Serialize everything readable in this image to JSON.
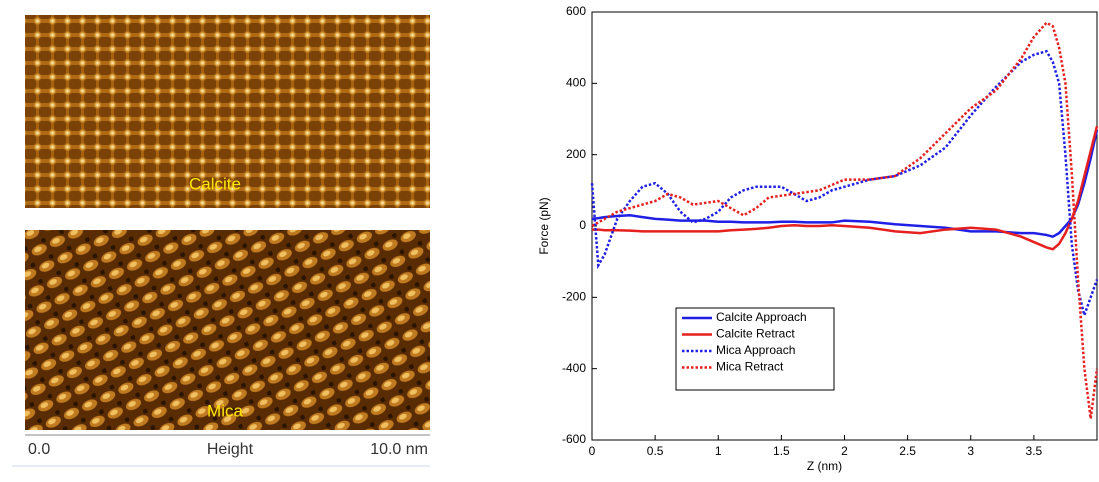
{
  "images": [
    {
      "label": "Calcite"
    },
    {
      "label": "Mica"
    }
  ],
  "scale_bar": {
    "min_label": "0.0",
    "title": "Height",
    "max_label": "10.0 nm"
  },
  "chart_data": {
    "type": "line",
    "xlabel": "Z (nm)",
    "ylabel": "Force (pN)",
    "x": [
      0,
      0.05,
      0.1,
      0.2,
      0.3,
      0.4,
      0.5,
      0.6,
      0.7,
      0.8,
      0.9,
      1.0,
      1.1,
      1.2,
      1.3,
      1.4,
      1.5,
      1.6,
      1.7,
      1.8,
      1.9,
      2.0,
      2.2,
      2.4,
      2.6,
      2.8,
      3.0,
      3.2,
      3.4,
      3.5,
      3.6,
      3.65,
      3.7,
      3.75,
      3.8,
      3.85,
      3.9,
      3.95,
      4.0
    ],
    "series": [
      {
        "name": "Calcite Approach",
        "color": "#1f1fe6",
        "style": "solid",
        "values": [
          20,
          22,
          25,
          28,
          30,
          25,
          20,
          18,
          15,
          15,
          15,
          12,
          12,
          10,
          10,
          10,
          12,
          12,
          10,
          10,
          10,
          15,
          12,
          5,
          0,
          -5,
          -15,
          -15,
          -20,
          -20,
          -25,
          -30,
          -20,
          0,
          20,
          60,
          120,
          190,
          270
        ]
      },
      {
        "name": "Calcite Retract",
        "color": "#e61f1f",
        "style": "solid",
        "values": [
          -10,
          -10,
          -12,
          -12,
          -13,
          -15,
          -15,
          -15,
          -15,
          -15,
          -15,
          -15,
          -12,
          -10,
          -8,
          -5,
          0,
          2,
          0,
          0,
          2,
          0,
          -5,
          -15,
          -20,
          -10,
          -5,
          -10,
          -30,
          -45,
          -60,
          -65,
          -50,
          -20,
          20,
          70,
          140,
          210,
          280
        ]
      },
      {
        "name": "Mica Approach",
        "color": "#1f1fe6",
        "style": "dotted",
        "values": [
          120,
          -110,
          -80,
          20,
          70,
          110,
          120,
          90,
          40,
          10,
          20,
          40,
          80,
          100,
          110,
          110,
          110,
          90,
          70,
          80,
          100,
          110,
          130,
          140,
          170,
          220,
          310,
          390,
          460,
          480,
          490,
          460,
          400,
          200,
          -50,
          -180,
          -250,
          -200,
          -150
        ]
      },
      {
        "name": "Mica Retract",
        "color": "#e61f1f",
        "style": "dotted",
        "values": [
          0,
          10,
          20,
          40,
          50,
          60,
          70,
          90,
          80,
          60,
          65,
          70,
          50,
          30,
          50,
          80,
          85,
          90,
          95,
          100,
          115,
          130,
          130,
          140,
          190,
          260,
          330,
          380,
          470,
          530,
          570,
          560,
          500,
          400,
          150,
          -150,
          -400,
          -540,
          -400
        ]
      }
    ],
    "xlim": [
      0,
      4
    ],
    "ylim": [
      -600,
      600
    ],
    "xticks": [
      0,
      0.5,
      1,
      1.5,
      2,
      2.5,
      3,
      3.5
    ],
    "yticks": [
      -600,
      -400,
      -200,
      0,
      200,
      400,
      600
    ],
    "grid": false
  }
}
